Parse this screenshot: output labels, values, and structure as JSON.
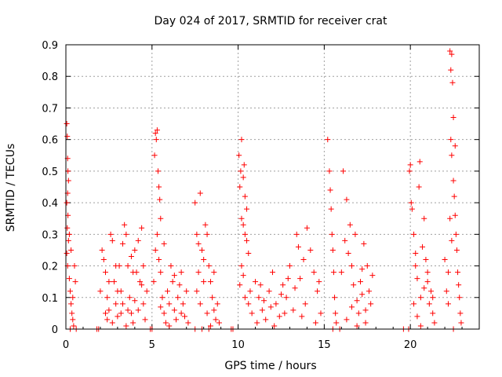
{
  "chart_data": {
    "type": "scatter",
    "title": "Day 024 of 2017, SRMTID for receiver crat",
    "xlabel": "GPS time / hours",
    "ylabel": "SRMTID / TECUs",
    "xlim": [
      0,
      24
    ],
    "ylim": [
      0,
      0.9
    ],
    "x_ticks": [
      "0",
      "5",
      "10",
      "15",
      "20"
    ],
    "y_ticks": [
      "0",
      "0.1",
      "0.2",
      "0.3",
      "0.4",
      "0.5",
      "0.6",
      "0.7",
      "0.8",
      "0.9"
    ],
    "grid": true,
    "marker": "+",
    "color": "#ff0000",
    "series": [
      {
        "name": "SRMTID",
        "points": [
          [
            0.05,
            0.65
          ],
          [
            0.08,
            0.61
          ],
          [
            0.1,
            0.54
          ],
          [
            0.12,
            0.5
          ],
          [
            0.15,
            0.47
          ],
          [
            0.1,
            0.43
          ],
          [
            0.05,
            0.4
          ],
          [
            0.12,
            0.36
          ],
          [
            0.08,
            0.32
          ],
          [
            0.15,
            0.28
          ],
          [
            0.05,
            0.24
          ],
          [
            0.1,
            0.2
          ],
          [
            0.2,
            0.16
          ],
          [
            0.25,
            0.12
          ],
          [
            0.3,
            0.08
          ],
          [
            0.35,
            0.05
          ],
          [
            0.4,
            0.03
          ],
          [
            0.45,
            0.01
          ],
          [
            0.5,
            0.2
          ],
          [
            0.55,
            0.15
          ],
          [
            0.3,
            0.25
          ],
          [
            0.2,
            0.3
          ],
          [
            0.6,
            0.0
          ],
          [
            0.4,
            0.1
          ],
          [
            0.25,
            0.0
          ],
          [
            1.8,
            0.0
          ],
          [
            1.9,
            0.0
          ],
          [
            2.0,
            0.12
          ],
          [
            2.1,
            0.25
          ],
          [
            2.2,
            0.22
          ],
          [
            2.3,
            0.18
          ],
          [
            2.4,
            0.1
          ],
          [
            2.5,
            0.06
          ],
          [
            2.6,
            0.3
          ],
          [
            2.7,
            0.28
          ],
          [
            2.8,
            0.15
          ],
          [
            2.9,
            0.08
          ],
          [
            3.0,
            0.04
          ],
          [
            3.1,
            0.2
          ],
          [
            3.2,
            0.12
          ],
          [
            3.3,
            0.27
          ],
          [
            3.4,
            0.33
          ],
          [
            3.5,
            0.3
          ],
          [
            3.6,
            0.2
          ],
          [
            3.7,
            0.1
          ],
          [
            3.8,
            0.05
          ],
          [
            3.9,
            0.02
          ],
          [
            4.0,
            0.25
          ],
          [
            4.1,
            0.18
          ],
          [
            4.2,
            0.28
          ],
          [
            4.3,
            0.15
          ],
          [
            4.4,
            0.32
          ],
          [
            4.5,
            0.08
          ],
          [
            4.6,
            0.03
          ],
          [
            4.7,
            0.12
          ],
          [
            2.3,
            0.05
          ],
          [
            2.5,
            0.15
          ],
          [
            2.7,
            0.02
          ],
          [
            3.0,
            0.12
          ],
          [
            3.3,
            0.08
          ],
          [
            3.6,
            0.06
          ],
          [
            3.9,
            0.18
          ],
          [
            4.2,
            0.06
          ],
          [
            4.5,
            0.2
          ],
          [
            2.4,
            0.03
          ],
          [
            3.5,
            0.01
          ],
          [
            4.0,
            0.09
          ],
          [
            4.4,
            0.14
          ],
          [
            2.9,
            0.2
          ],
          [
            3.2,
            0.05
          ],
          [
            3.8,
            0.23
          ],
          [
            4.9,
            0.0
          ],
          [
            5.0,
            0.0
          ],
          [
            5.1,
            0.15
          ],
          [
            5.15,
            0.55
          ],
          [
            5.2,
            0.62
          ],
          [
            5.25,
            0.6
          ],
          [
            5.3,
            0.63
          ],
          [
            5.35,
            0.5
          ],
          [
            5.4,
            0.45
          ],
          [
            5.45,
            0.41
          ],
          [
            5.5,
            0.35
          ],
          [
            5.3,
            0.3
          ],
          [
            5.2,
            0.25
          ],
          [
            5.4,
            0.22
          ],
          [
            5.5,
            0.18
          ],
          [
            5.6,
            0.1
          ],
          [
            5.7,
            0.05
          ],
          [
            5.8,
            0.02
          ],
          [
            5.9,
            0.12
          ],
          [
            6.0,
            0.08
          ],
          [
            6.1,
            0.2
          ],
          [
            6.2,
            0.15
          ],
          [
            6.3,
            0.06
          ],
          [
            6.4,
            0.03
          ],
          [
            6.5,
            0.1
          ],
          [
            6.6,
            0.14
          ],
          [
            6.7,
            0.18
          ],
          [
            6.8,
            0.08
          ],
          [
            6.9,
            0.04
          ],
          [
            7.0,
            0.12
          ],
          [
            7.1,
            0.02
          ],
          [
            5.7,
            0.27
          ],
          [
            5.5,
            0.07
          ],
          [
            6.0,
            0.01
          ],
          [
            6.3,
            0.17
          ],
          [
            6.7,
            0.05
          ],
          [
            7.5,
            0.4
          ],
          [
            7.6,
            0.3
          ],
          [
            7.7,
            0.27
          ],
          [
            7.8,
            0.43
          ],
          [
            7.9,
            0.25
          ],
          [
            8.0,
            0.22
          ],
          [
            8.1,
            0.33
          ],
          [
            8.2,
            0.3
          ],
          [
            8.3,
            0.2
          ],
          [
            8.4,
            0.15
          ],
          [
            8.5,
            0.1
          ],
          [
            8.6,
            0.06
          ],
          [
            8.7,
            0.03
          ],
          [
            8.8,
            0.08
          ],
          [
            8.9,
            0.02
          ],
          [
            7.6,
            0.12
          ],
          [
            7.8,
            0.08
          ],
          [
            8.0,
            0.15
          ],
          [
            8.2,
            0.05
          ],
          [
            8.4,
            0.01
          ],
          [
            7.7,
            0.18
          ],
          [
            8.6,
            0.18
          ],
          [
            7.5,
            0.0
          ],
          [
            7.9,
            0.0
          ],
          [
            8.3,
            0.0
          ],
          [
            9.6,
            0.0
          ],
          [
            9.7,
            0.0
          ],
          [
            10.05,
            0.55
          ],
          [
            10.1,
            0.45
          ],
          [
            10.15,
            0.5
          ],
          [
            10.2,
            0.6
          ],
          [
            10.3,
            0.48
          ],
          [
            10.35,
            0.52
          ],
          [
            10.4,
            0.42
          ],
          [
            10.5,
            0.38
          ],
          [
            10.2,
            0.35
          ],
          [
            10.3,
            0.33
          ],
          [
            10.4,
            0.3
          ],
          [
            10.5,
            0.28
          ],
          [
            10.6,
            0.24
          ],
          [
            10.2,
            0.2
          ],
          [
            10.3,
            0.17
          ],
          [
            10.1,
            0.14
          ],
          [
            10.4,
            0.1
          ],
          [
            10.6,
            0.08
          ],
          [
            10.8,
            0.05
          ],
          [
            11.0,
            0.15
          ],
          [
            11.2,
            0.1
          ],
          [
            11.4,
            0.06
          ],
          [
            11.6,
            0.03
          ],
          [
            11.8,
            0.12
          ],
          [
            12.0,
            0.18
          ],
          [
            12.2,
            0.08
          ],
          [
            12.4,
            0.04
          ],
          [
            12.6,
            0.14
          ],
          [
            12.8,
            0.1
          ],
          [
            13.0,
            0.2
          ],
          [
            13.2,
            0.06
          ],
          [
            13.4,
            0.3
          ],
          [
            13.5,
            0.26
          ],
          [
            13.6,
            0.16
          ],
          [
            13.8,
            0.22
          ],
          [
            14.0,
            0.32
          ],
          [
            14.2,
            0.25
          ],
          [
            14.4,
            0.18
          ],
          [
            14.6,
            0.12
          ],
          [
            14.8,
            0.05
          ],
          [
            11.1,
            0.02
          ],
          [
            11.5,
            0.09
          ],
          [
            12.1,
            0.01
          ],
          [
            12.7,
            0.05
          ],
          [
            13.3,
            0.13
          ],
          [
            13.9,
            0.08
          ],
          [
            14.5,
            0.02
          ],
          [
            11.3,
            0.14
          ],
          [
            12.5,
            0.11
          ],
          [
            13.7,
            0.04
          ],
          [
            14.7,
            0.15
          ],
          [
            11.9,
            0.07
          ],
          [
            12.9,
            0.16
          ],
          [
            10.7,
            0.12
          ],
          [
            15.2,
            0.6
          ],
          [
            15.3,
            0.5
          ],
          [
            15.35,
            0.44
          ],
          [
            15.4,
            0.38
          ],
          [
            15.45,
            0.3
          ],
          [
            15.5,
            0.25
          ],
          [
            15.55,
            0.18
          ],
          [
            15.6,
            0.1
          ],
          [
            15.65,
            0.05
          ],
          [
            15.7,
            0.02
          ],
          [
            15.5,
            0.0
          ],
          [
            15.9,
            0.0
          ],
          [
            16.0,
            0.18
          ],
          [
            16.1,
            0.5
          ],
          [
            16.2,
            0.28
          ],
          [
            16.3,
            0.41
          ],
          [
            16.4,
            0.24
          ],
          [
            16.5,
            0.33
          ],
          [
            16.6,
            0.2
          ],
          [
            16.7,
            0.14
          ],
          [
            16.8,
            0.3
          ],
          [
            16.9,
            0.09
          ],
          [
            17.0,
            0.05
          ],
          [
            17.1,
            0.15
          ],
          [
            17.2,
            0.11
          ],
          [
            17.3,
            0.27
          ],
          [
            17.4,
            0.06
          ],
          [
            17.5,
            0.2
          ],
          [
            17.6,
            0.12
          ],
          [
            17.7,
            0.08
          ],
          [
            17.8,
            0.17
          ],
          [
            16.3,
            0.03
          ],
          [
            16.9,
            0.01
          ],
          [
            17.4,
            0.02
          ],
          [
            16.6,
            0.07
          ],
          [
            17.2,
            0.19
          ],
          [
            19.6,
            0.0
          ],
          [
            19.9,
            0.0
          ],
          [
            19.95,
            0.5
          ],
          [
            20.0,
            0.52
          ],
          [
            20.05,
            0.4
          ],
          [
            20.1,
            0.38
          ],
          [
            20.2,
            0.3
          ],
          [
            20.3,
            0.2
          ],
          [
            20.4,
            0.16
          ],
          [
            20.5,
            0.45
          ],
          [
            20.55,
            0.53
          ],
          [
            20.6,
            0.1
          ],
          [
            20.7,
            0.26
          ],
          [
            20.8,
            0.35
          ],
          [
            20.9,
            0.22
          ],
          [
            21.0,
            0.15
          ],
          [
            21.1,
            0.08
          ],
          [
            21.2,
            0.12
          ],
          [
            21.3,
            0.05
          ],
          [
            21.4,
            0.02
          ],
          [
            20.2,
            0.08
          ],
          [
            20.4,
            0.04
          ],
          [
            20.6,
            0.01
          ],
          [
            20.8,
            0.13
          ],
          [
            21.0,
            0.18
          ],
          [
            20.3,
            0.24
          ],
          [
            21.3,
            0.1
          ],
          [
            22.0,
            0.22
          ],
          [
            22.1,
            0.12
          ],
          [
            22.2,
            0.08
          ],
          [
            22.3,
            0.88
          ],
          [
            22.35,
            0.82
          ],
          [
            22.4,
            0.87
          ],
          [
            22.45,
            0.78
          ],
          [
            22.35,
            0.6
          ],
          [
            22.4,
            0.55
          ],
          [
            22.5,
            0.67
          ],
          [
            22.5,
            0.47
          ],
          [
            22.55,
            0.42
          ],
          [
            22.6,
            0.36
          ],
          [
            22.65,
            0.3
          ],
          [
            22.7,
            0.25
          ],
          [
            22.75,
            0.18
          ],
          [
            22.8,
            0.14
          ],
          [
            22.85,
            0.1
          ],
          [
            22.9,
            0.05
          ],
          [
            22.95,
            0.02
          ],
          [
            22.3,
            0.35
          ],
          [
            22.4,
            0.28
          ],
          [
            22.2,
            0.18
          ],
          [
            22.6,
            0.58
          ],
          [
            22.5,
            0.0
          ]
        ]
      }
    ]
  }
}
